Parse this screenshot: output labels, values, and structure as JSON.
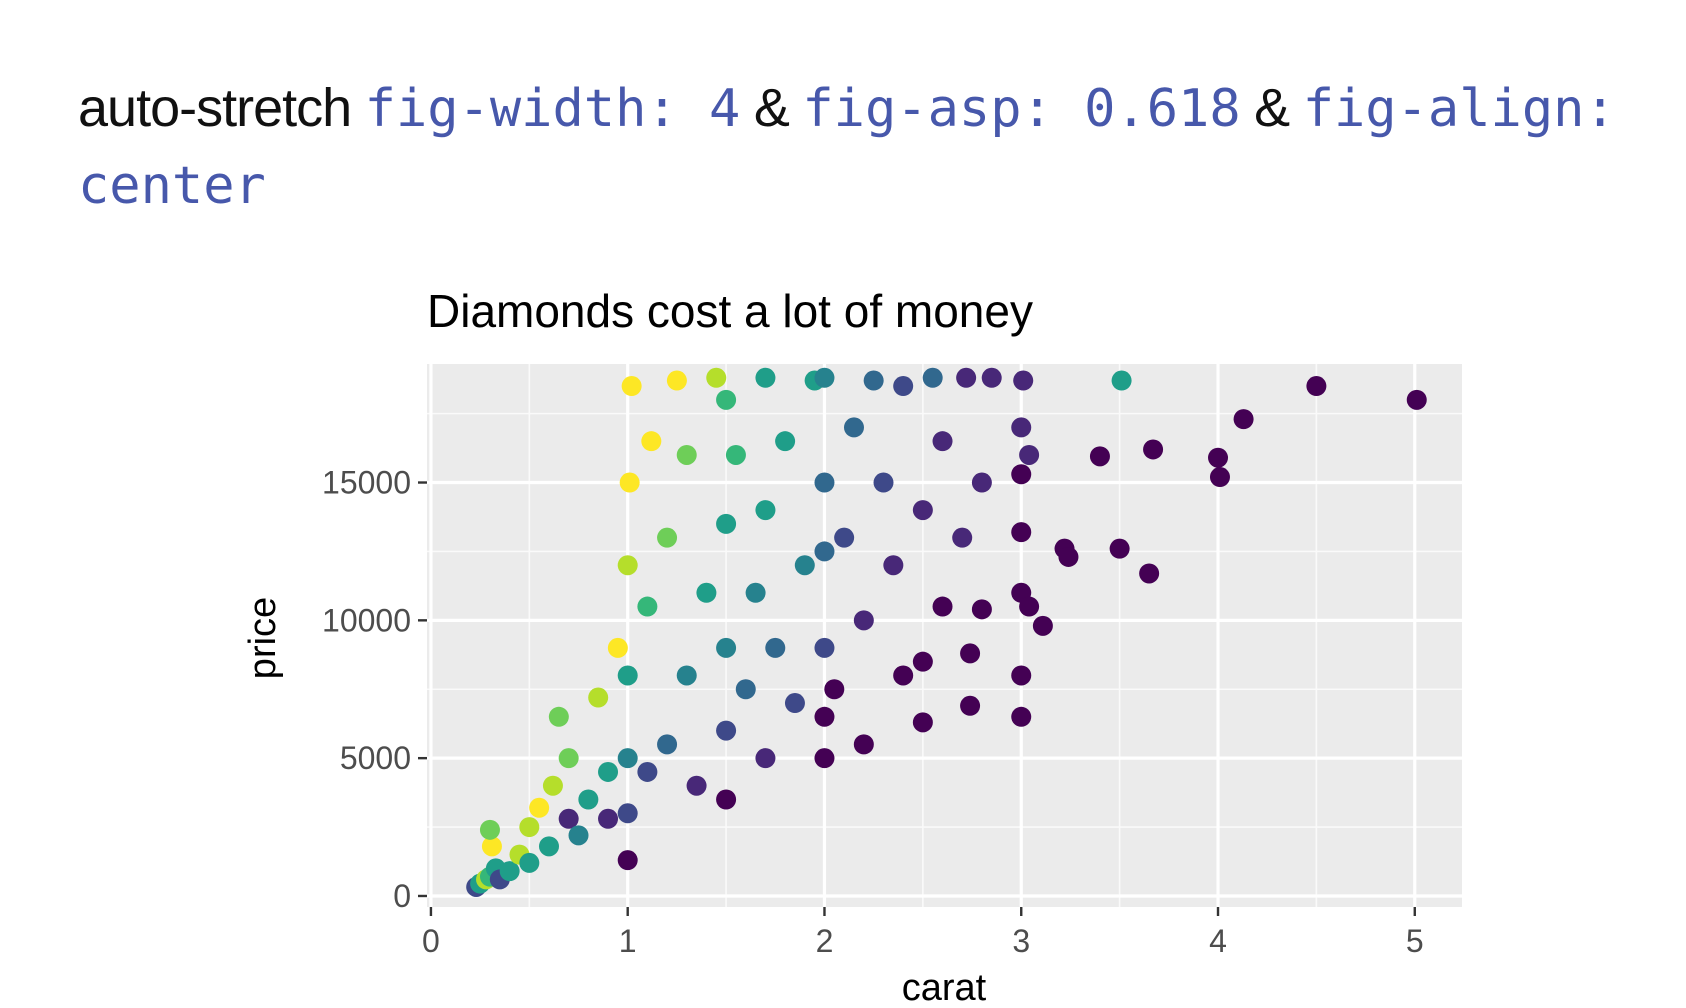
{
  "heading": {
    "prefix": "auto-stretch",
    "code1": "fig-width: 4",
    "sep1": "&",
    "code2": "fig-asp: 0.618",
    "sep2": "&",
    "code3": "fig-align: center"
  },
  "colors": {
    "heading_code": "#4758ab",
    "panel_bg": "#ebebeb",
    "viridis": [
      "#440154",
      "#482878",
      "#3e4989",
      "#31688e",
      "#26828e",
      "#1f9e89",
      "#35b779",
      "#6ece58",
      "#b5de2b",
      "#fde725"
    ]
  },
  "chart_data": {
    "type": "scatter",
    "title": "Diamonds cost a lot of money",
    "xlabel": "carat",
    "ylabel": "price",
    "xlim": [
      -0.02,
      5.24
    ],
    "ylim": [
      -400,
      19300
    ],
    "xticks": [
      0,
      1,
      2,
      3,
      4,
      5
    ],
    "yticks": [
      0,
      5000,
      10000,
      15000
    ],
    "grid": true,
    "legend": "none",
    "color_scale": "viridis",
    "color_note": "points colored on a viridis scale: high-price-per-carat yellow near 1 carat, dark purple for large heavy stones",
    "points": [
      [
        0.23,
        326,
        0.2
      ],
      [
        0.25,
        450,
        0.6
      ],
      [
        0.28,
        600,
        0.9
      ],
      [
        0.3,
        700,
        0.7
      ],
      [
        0.31,
        1800,
        0.95
      ],
      [
        0.3,
        2400,
        0.8
      ],
      [
        0.33,
        1000,
        0.5
      ],
      [
        0.35,
        600,
        0.2
      ],
      [
        0.4,
        900,
        0.6
      ],
      [
        0.45,
        1500,
        0.9
      ],
      [
        0.5,
        2500,
        0.85
      ],
      [
        0.5,
        1200,
        0.5
      ],
      [
        0.55,
        3200,
        0.95
      ],
      [
        0.6,
        1800,
        0.6
      ],
      [
        0.62,
        4000,
        0.9
      ],
      [
        0.65,
        6500,
        0.75
      ],
      [
        0.7,
        2800,
        0.1
      ],
      [
        0.7,
        5000,
        0.8
      ],
      [
        0.75,
        2200,
        0.4
      ],
      [
        0.8,
        3500,
        0.6
      ],
      [
        0.85,
        7200,
        0.9
      ],
      [
        0.9,
        2800,
        0.1
      ],
      [
        0.9,
        4500,
        0.5
      ],
      [
        0.95,
        9000,
        0.95
      ],
      [
        1.0,
        1300,
        0.05
      ],
      [
        1.0,
        3000,
        0.2
      ],
      [
        1.0,
        5000,
        0.4
      ],
      [
        1.0,
        8000,
        0.6
      ],
      [
        1.0,
        12000,
        0.85
      ],
      [
        1.01,
        15000,
        0.95
      ],
      [
        1.02,
        18500,
        1.0
      ],
      [
        1.1,
        4500,
        0.25
      ],
      [
        1.1,
        10500,
        0.7
      ],
      [
        1.12,
        16500,
        0.95
      ],
      [
        1.2,
        5500,
        0.3
      ],
      [
        1.2,
        13000,
        0.75
      ],
      [
        1.25,
        18700,
        0.95
      ],
      [
        1.3,
        8000,
        0.45
      ],
      [
        1.3,
        16000,
        0.8
      ],
      [
        1.35,
        4000,
        0.1
      ],
      [
        1.4,
        11000,
        0.55
      ],
      [
        1.45,
        18800,
        0.85
      ],
      [
        1.5,
        3500,
        0.05
      ],
      [
        1.5,
        6000,
        0.25
      ],
      [
        1.5,
        9000,
        0.45
      ],
      [
        1.5,
        13500,
        0.6
      ],
      [
        1.5,
        18000,
        0.7
      ],
      [
        1.55,
        16000,
        0.65
      ],
      [
        1.6,
        7500,
        0.3
      ],
      [
        1.65,
        11000,
        0.45
      ],
      [
        1.7,
        5000,
        0.1
      ],
      [
        1.7,
        14000,
        0.55
      ],
      [
        1.7,
        18800,
        0.6
      ],
      [
        1.75,
        9000,
        0.35
      ],
      [
        1.8,
        16500,
        0.5
      ],
      [
        1.85,
        7000,
        0.2
      ],
      [
        1.9,
        12000,
        0.4
      ],
      [
        1.95,
        18700,
        0.5
      ],
      [
        2.0,
        5000,
        0.0
      ],
      [
        2.0,
        6500,
        0.05
      ],
      [
        2.0,
        9000,
        0.2
      ],
      [
        2.0,
        12500,
        0.3
      ],
      [
        2.0,
        15000,
        0.35
      ],
      [
        2.0,
        18800,
        0.45
      ],
      [
        2.05,
        7500,
        0.05
      ],
      [
        2.1,
        13000,
        0.25
      ],
      [
        2.15,
        17000,
        0.3
      ],
      [
        2.2,
        10000,
        0.15
      ],
      [
        2.2,
        5500,
        0.0
      ],
      [
        2.25,
        18700,
        0.35
      ],
      [
        2.3,
        15000,
        0.2
      ],
      [
        2.35,
        12000,
        0.15
      ],
      [
        2.4,
        8000,
        0.05
      ],
      [
        2.4,
        18500,
        0.25
      ],
      [
        2.5,
        14000,
        0.15
      ],
      [
        2.5,
        8500,
        0.0
      ],
      [
        2.5,
        6300,
        0.0
      ],
      [
        2.55,
        18800,
        0.3
      ],
      [
        2.6,
        10500,
        0.05
      ],
      [
        2.6,
        16500,
        0.15
      ],
      [
        2.7,
        13000,
        0.1
      ],
      [
        2.72,
        18800,
        0.15
      ],
      [
        2.74,
        8800,
        0.0
      ],
      [
        2.74,
        6900,
        0.0
      ],
      [
        2.8,
        15000,
        0.1
      ],
      [
        2.8,
        10400,
        0.0
      ],
      [
        2.85,
        18800,
        0.1
      ],
      [
        3.0,
        6500,
        0.0
      ],
      [
        3.0,
        8000,
        0.0
      ],
      [
        3.0,
        11000,
        0.0
      ],
      [
        3.0,
        13200,
        0.0
      ],
      [
        3.0,
        15300,
        0.05
      ],
      [
        3.0,
        17000,
        0.1
      ],
      [
        3.01,
        18700,
        0.15
      ],
      [
        3.04,
        16000,
        0.1
      ],
      [
        3.04,
        10500,
        0.0
      ],
      [
        3.11,
        9800,
        0.0
      ],
      [
        3.22,
        12600,
        0.0
      ],
      [
        3.24,
        12300,
        0.0
      ],
      [
        3.4,
        15950,
        0.0
      ],
      [
        3.5,
        12600,
        0.0
      ],
      [
        3.51,
        18700,
        0.5
      ],
      [
        3.65,
        11700,
        0.0
      ],
      [
        3.67,
        16200,
        0.0
      ],
      [
        4.0,
        15900,
        0.0
      ],
      [
        4.01,
        15200,
        0.0
      ],
      [
        4.13,
        17300,
        0.0
      ],
      [
        4.5,
        18500,
        0.0
      ],
      [
        5.01,
        18000,
        0.0
      ]
    ]
  }
}
